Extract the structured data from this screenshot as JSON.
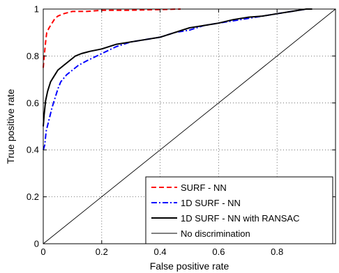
{
  "chart_data": {
    "type": "line",
    "title": "",
    "xlabel": "False positive rate",
    "ylabel": "True positive rate",
    "xlim": [
      0,
      1
    ],
    "ylim": [
      0,
      1
    ],
    "x_ticks": [
      0,
      0.2,
      0.4,
      0.6,
      0.8
    ],
    "y_ticks": [
      0,
      0.2,
      0.4,
      0.6,
      0.8,
      1
    ],
    "x_tick_labels": [
      "0",
      "0.2",
      "0.4",
      "0.6",
      "0.8"
    ],
    "y_tick_labels": [
      "0",
      "0.2",
      "0.4",
      "0.6",
      "0.8",
      "1"
    ],
    "grid": true,
    "legend_position": "bottom-right",
    "series": [
      {
        "name": "SURF - NN",
        "color": "#ff0000",
        "dash": "dashed",
        "x": [
          0,
          0.002,
          0.005,
          0.008,
          0.012,
          0.02,
          0.03,
          0.04,
          0.05,
          0.07,
          0.1,
          0.15,
          0.2,
          0.3,
          0.4,
          0.47
        ],
        "y": [
          0.75,
          0.78,
          0.82,
          0.86,
          0.9,
          0.92,
          0.94,
          0.96,
          0.97,
          0.98,
          0.99,
          0.99,
          0.995,
          0.995,
          0.998,
          1.0
        ]
      },
      {
        "name": "1D SURF - NN",
        "color": "#0000ff",
        "dash": "dashdot",
        "x": [
          0,
          0.005,
          0.01,
          0.02,
          0.03,
          0.04,
          0.05,
          0.06,
          0.08,
          0.1,
          0.12,
          0.15,
          0.2,
          0.25,
          0.3,
          0.35,
          0.4,
          0.45,
          0.5,
          0.55,
          0.6,
          0.65,
          0.7,
          0.75,
          0.8,
          0.85,
          0.9,
          0.92
        ],
        "y": [
          0.4,
          0.42,
          0.48,
          0.53,
          0.58,
          0.62,
          0.66,
          0.69,
          0.72,
          0.74,
          0.76,
          0.78,
          0.81,
          0.84,
          0.86,
          0.87,
          0.88,
          0.9,
          0.91,
          0.93,
          0.94,
          0.95,
          0.96,
          0.97,
          0.98,
          0.99,
          1.0,
          1.0
        ]
      },
      {
        "name": "1D SURF - NN with RANSAC",
        "color": "#000000",
        "dash": "solid",
        "x": [
          0,
          0.003,
          0.008,
          0.015,
          0.025,
          0.035,
          0.05,
          0.07,
          0.09,
          0.11,
          0.13,
          0.16,
          0.2,
          0.25,
          0.3,
          0.35,
          0.4,
          0.45,
          0.5,
          0.55,
          0.6,
          0.65,
          0.7,
          0.75,
          0.8,
          0.85,
          0.9,
          0.92
        ],
        "y": [
          0.5,
          0.55,
          0.61,
          0.65,
          0.69,
          0.71,
          0.74,
          0.76,
          0.78,
          0.8,
          0.81,
          0.82,
          0.83,
          0.85,
          0.86,
          0.87,
          0.88,
          0.9,
          0.92,
          0.93,
          0.94,
          0.955,
          0.965,
          0.97,
          0.98,
          0.99,
          1.0,
          1.0
        ]
      },
      {
        "name": "No discrimination",
        "color": "#000000",
        "dash": "thin",
        "x": [
          0,
          1
        ],
        "y": [
          0,
          1
        ]
      }
    ]
  }
}
